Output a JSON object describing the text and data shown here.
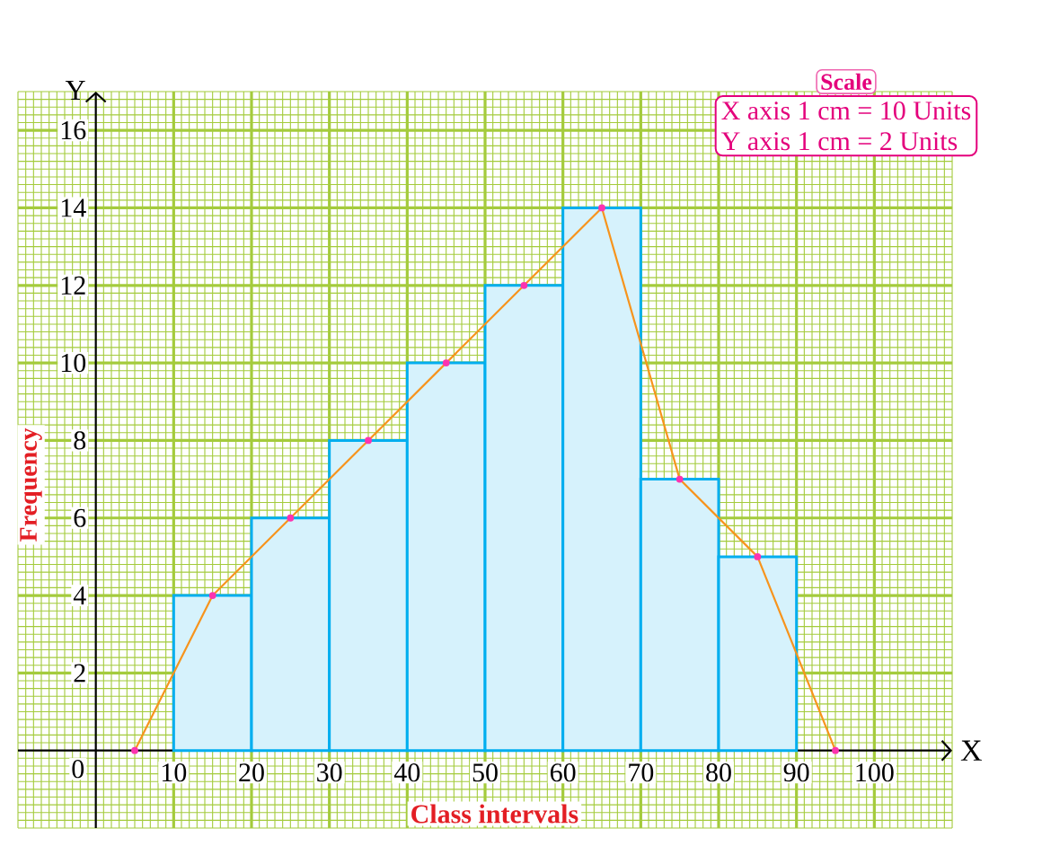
{
  "chart_data": {
    "type": "histogram",
    "xlabel": "Class intervals",
    "ylabel": "Frequency",
    "annotations": [
      "Scale",
      "X axis 1 cm = 10 Units",
      "Y axis 1 cm = 2 Units",
      "X",
      "Y",
      "0"
    ],
    "xlim": [
      -10,
      110
    ],
    "ylim": [
      -2,
      17
    ],
    "xticks": [
      10,
      20,
      30,
      40,
      50,
      60,
      70,
      80,
      90,
      100
    ],
    "yticks": [
      2,
      4,
      6,
      8,
      10,
      12,
      14,
      16
    ],
    "grid": true,
    "series": [
      {
        "color": "#00aeef",
        "bins": [
          10,
          20,
          30,
          40,
          50,
          60,
          70,
          80,
          90
        ],
        "values": [
          4,
          6,
          8,
          10,
          12,
          14,
          7,
          5
        ]
      },
      {
        "type": "line",
        "color": "#f7941d",
        "marker": "circle",
        "x": [
          5,
          15,
          25,
          35,
          45,
          55,
          65,
          75,
          85,
          95
        ],
        "values": [
          0,
          4,
          6,
          8,
          10,
          12,
          14,
          7,
          5,
          0
        ]
      }
    ]
  }
}
